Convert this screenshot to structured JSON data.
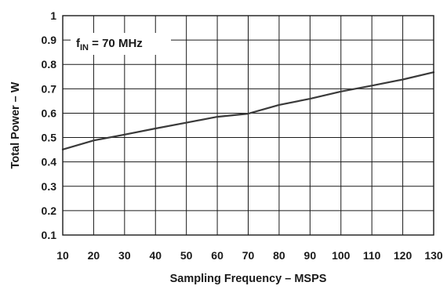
{
  "chart_data": {
    "type": "line",
    "xlabel": "Sampling  Frequency – MSPS",
    "ylabel": "Total Power – W",
    "xlim": [
      10,
      130
    ],
    "ylim": [
      0.1,
      1.0
    ],
    "x_ticks": [
      "10",
      "20",
      "30",
      "40",
      "50",
      "60",
      "70",
      "80",
      "90",
      "100",
      "110",
      "120",
      "130"
    ],
    "y_ticks": [
      "0.1",
      "0.2",
      "0.3",
      "0.4",
      "0.5",
      "0.6",
      "0.7",
      "0.8",
      "0.9",
      "1"
    ],
    "grid": true,
    "annotation": {
      "prefix": "f",
      "subscript": "IN",
      "suffix": " = 70 MHz"
    },
    "series": [
      {
        "color": "#3a3a3a",
        "x": [
          10,
          20,
          30,
          40,
          50,
          60,
          70,
          80,
          90,
          100,
          110,
          120,
          130
        ],
        "y": [
          0.451,
          0.488,
          0.512,
          0.537,
          0.561,
          0.585,
          0.598,
          0.634,
          0.659,
          0.689,
          0.713,
          0.738,
          0.768
        ]
      }
    ]
  }
}
